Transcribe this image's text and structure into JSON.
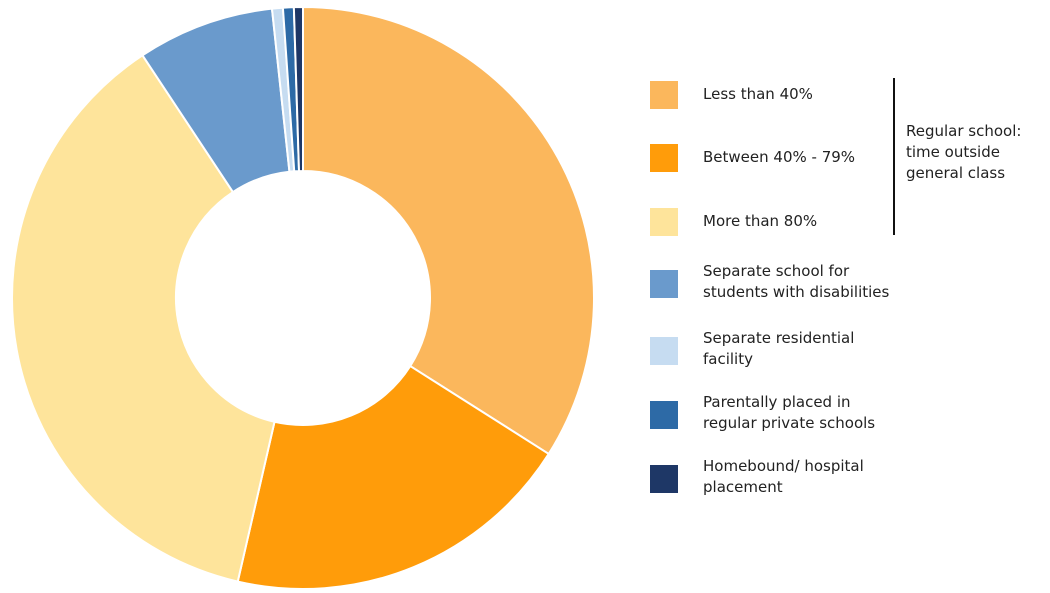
{
  "chart_data": {
    "type": "pie",
    "variant": "donut",
    "title": "",
    "start_angle_deg": 0,
    "direction": "clockwise",
    "slices": [
      {
        "label": "Less than 40%",
        "value": 34.0,
        "color": "#fbb75c"
      },
      {
        "label": "Between 40% - 79%",
        "value": 19.6,
        "color": "#ff9c0a"
      },
      {
        "label": "More than 80%",
        "value": 37.1,
        "color": "#fee49b"
      },
      {
        "label": "Separate school for\nstudents with disabilities",
        "value": 7.6,
        "color": "#6a9acc"
      },
      {
        "label": "Separate residential\nfacility",
        "value": 0.6,
        "color": "#c6dcf1"
      },
      {
        "label": "Parentally placed in\nregular private schools",
        "value": 0.6,
        "color": "#2d6aa6"
      },
      {
        "label": "Homebound/ hospital\nplacement",
        "value": 0.5,
        "color": "#1e3766"
      }
    ],
    "legend": {
      "placement": "right",
      "group_label": "Regular school:\ntime outside\ngeneral class",
      "group_member_count": 3
    },
    "separator_color": "#ffffff"
  }
}
